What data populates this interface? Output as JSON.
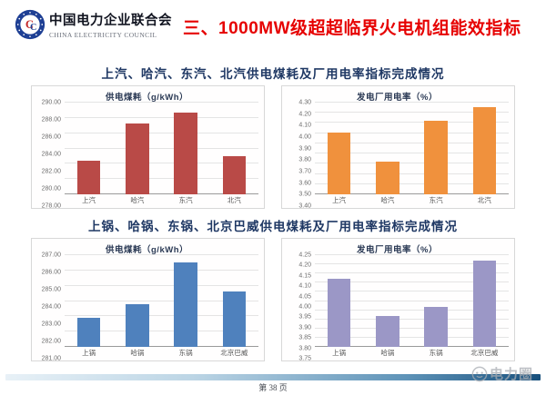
{
  "header": {
    "org_name": "中国电力企业联合会",
    "org_name_en": "CHINA ELECTRICITY COUNCIL",
    "title": "三、1000MW级超超临界火电机组能效指标"
  },
  "sections": {
    "turbine_subtitle": "上汽、哈汽、东汽、北汽供电煤耗及厂用电率指标完成情况",
    "boiler_subtitle": "上锅、哈锅、东锅、北京巴威供电煤耗及厂用电率指标完成情况"
  },
  "footer": {
    "page_label": "第 38 页",
    "watermark": "电力圈"
  },
  "colors": {
    "title_red": "#e60000",
    "subtitle_navy": "#1f3864",
    "coal_turbine_bar": "#b94a47",
    "aux_turbine_bar": "#f0913d",
    "coal_boiler_bar": "#4f81bd",
    "aux_boiler_bar": "#9b97c6"
  },
  "chart_data": [
    {
      "type": "bar",
      "title": "供电煤耗（g/kWh）",
      "categories": [
        "上汽",
        "哈汽",
        "东汽",
        "北汽"
      ],
      "values": [
        282.4,
        287.3,
        288.7,
        283.0
      ],
      "ylim": [
        278.0,
        290.0
      ],
      "ytick_step": 2.0,
      "tick_decimals": 2,
      "bar_color": "#b94a47",
      "grid": true,
      "legend": "none"
    },
    {
      "type": "bar",
      "title": "发电厂用电率（%）",
      "categories": [
        "上汽",
        "哈汽",
        "东汽",
        "北汽"
      ],
      "values": [
        4.01,
        3.72,
        4.12,
        4.26
      ],
      "ylim": [
        3.4,
        4.3
      ],
      "ytick_step": 0.1,
      "tick_decimals": 2,
      "bar_color": "#f0913d",
      "grid": true,
      "legend": "none"
    },
    {
      "type": "bar",
      "title": "供电煤耗（g/kWh）",
      "categories": [
        "上锅",
        "哈锅",
        "东锅",
        "北京巴威"
      ],
      "values": [
        282.9,
        283.8,
        286.5,
        284.6
      ],
      "ylim": [
        281.0,
        287.0
      ],
      "ytick_step": 1.0,
      "tick_decimals": 2,
      "bar_color": "#4f81bd",
      "grid": true,
      "legend": "none"
    },
    {
      "type": "bar",
      "title": "发电厂用电率（%）",
      "categories": [
        "上锅",
        "哈锅",
        "东锅",
        "北京巴威"
      ],
      "values": [
        4.12,
        3.92,
        3.97,
        4.22
      ],
      "ylim": [
        3.75,
        4.25
      ],
      "ytick_step": 0.05,
      "tick_decimals": 2,
      "bar_color": "#9b97c6",
      "grid": true,
      "legend": "none"
    }
  ]
}
